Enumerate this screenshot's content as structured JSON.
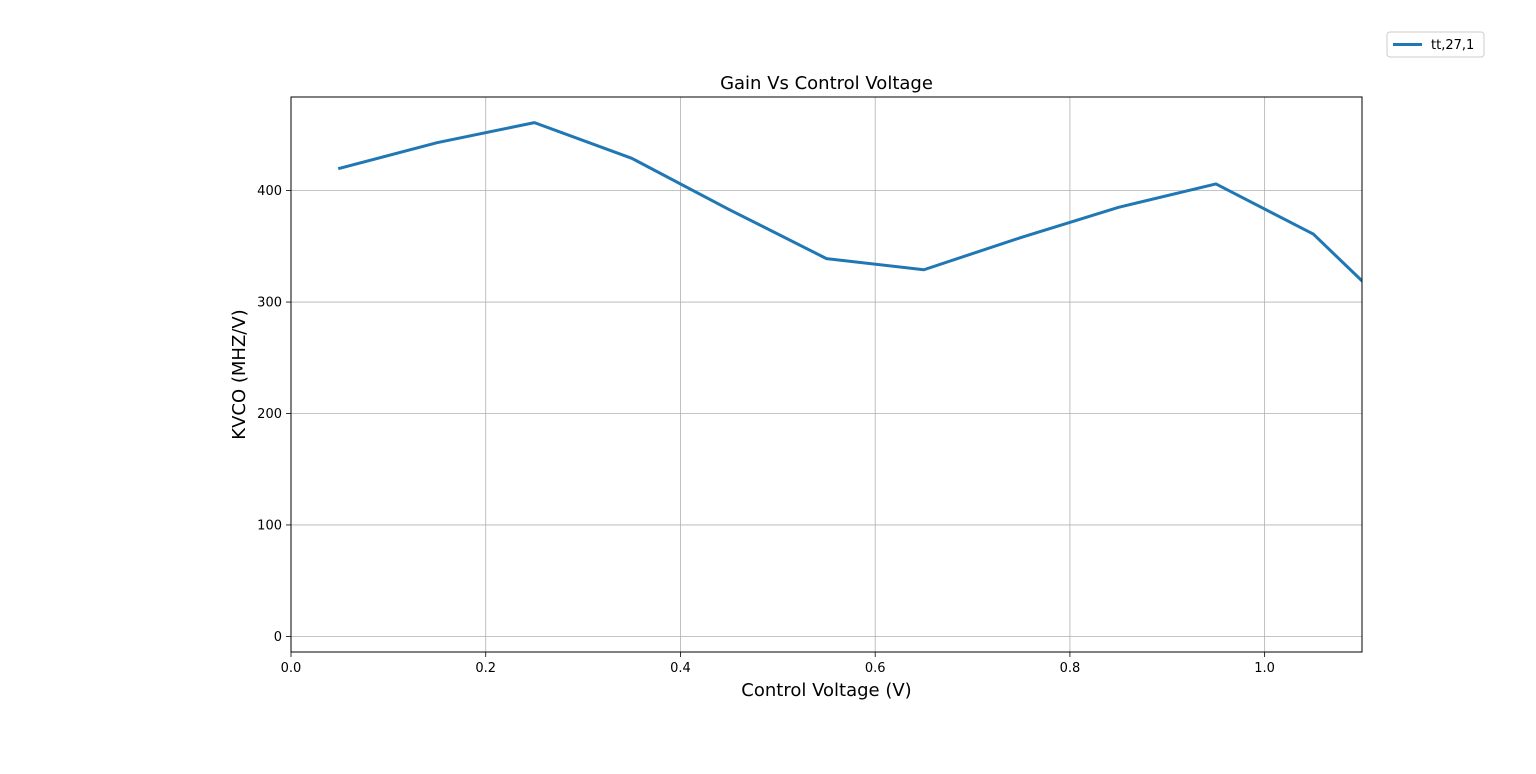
{
  "chart_data": {
    "type": "line",
    "title": "Gain  Vs Control Voltage",
    "xlabel": "Control Voltage (V)",
    "ylabel": "KVCO (MHZ/V)",
    "xlim": [
      0.0,
      1.1
    ],
    "ylim": [
      -14,
      484
    ],
    "xticks": [
      0.0,
      0.2,
      0.4,
      0.6,
      0.8,
      1.0
    ],
    "xtick_labels": [
      "0.0",
      "0.2",
      "0.4",
      "0.6",
      "0.8",
      "1.0"
    ],
    "yticks": [
      0,
      100,
      200,
      300,
      400
    ],
    "ytick_labels": [
      "0",
      "100",
      "200",
      "300",
      "400"
    ],
    "grid": true,
    "legend_position": "top-right",
    "series": [
      {
        "name": "tt,27,1",
        "color": "#1f77b4",
        "x": [
          0.05,
          0.15,
          0.25,
          0.35,
          0.45,
          0.55,
          0.65,
          0.75,
          0.85,
          0.95,
          1.05,
          1.1
        ],
        "y": [
          420,
          443,
          461,
          429,
          383,
          339,
          329,
          358,
          385,
          406,
          361,
          319
        ]
      }
    ]
  }
}
